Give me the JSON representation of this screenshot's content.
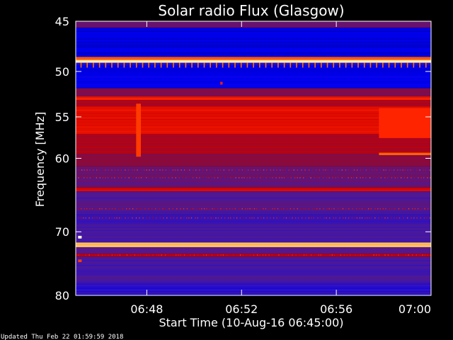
{
  "chart_data": {
    "type": "heatmap",
    "title": "Solar radio Flux (Glasgow)",
    "xlabel": "Start Time (10-Aug-16 06:45:00)",
    "ylabel": "Frequency [MHz]",
    "x_ticks": [
      "06:48",
      "06:52",
      "06:56",
      "07:00"
    ],
    "x_tick_minutes": [
      48,
      52,
      56,
      60
    ],
    "xlim_minutes": [
      45,
      60
    ],
    "y_ticks": [
      "45",
      "50",
      "55",
      "60",
      "70",
      "80"
    ],
    "y_tick_values": [
      45,
      50,
      55,
      60,
      70,
      80
    ],
    "ylim": [
      45,
      80
    ],
    "y_reversed": true,
    "y_scale": "log",
    "grid": false,
    "colormap": [
      "#00008b",
      "#0000ff",
      "#4b1a9a",
      "#8b0a3a",
      "#cc0000",
      "#ff2000",
      "#ff8c00",
      "#ffffe0"
    ],
    "bands": [
      {
        "f0": 45.0,
        "f1": 45.6,
        "level": 0.35
      },
      {
        "f0": 45.6,
        "f1": 48.5,
        "level": 0.1
      },
      {
        "f0": 48.5,
        "f1": 48.8,
        "level": 0.8
      },
      {
        "f0": 48.8,
        "f1": 49.1,
        "level": 0.97
      },
      {
        "f0": 49.1,
        "f1": 49.4,
        "level": 0.2
      },
      {
        "f0": 49.4,
        "f1": 51.8,
        "level": 0.12
      },
      {
        "f0": 51.8,
        "f1": 52.7,
        "level": 0.4
      },
      {
        "f0": 52.7,
        "f1": 53.1,
        "level": 0.7
      },
      {
        "f0": 53.1,
        "f1": 53.8,
        "level": 0.5
      },
      {
        "f0": 53.8,
        "f1": 57.0,
        "level": 0.64
      },
      {
        "f0": 57.0,
        "f1": 59.5,
        "level": 0.5
      },
      {
        "f0": 59.5,
        "f1": 61.0,
        "level": 0.42
      },
      {
        "f0": 61.0,
        "f1": 63.8,
        "level": 0.34
      },
      {
        "f0": 63.8,
        "f1": 64.3,
        "level": 0.6
      },
      {
        "f0": 64.3,
        "f1": 67.5,
        "level": 0.3
      },
      {
        "f0": 67.5,
        "f1": 69.0,
        "level": 0.24
      },
      {
        "f0": 69.0,
        "f1": 71.6,
        "level": 0.28
      },
      {
        "f0": 71.6,
        "f1": 72.3,
        "level": 0.93
      },
      {
        "f0": 72.3,
        "f1": 73.3,
        "level": 0.3
      },
      {
        "f0": 73.3,
        "f1": 73.8,
        "level": 0.5
      },
      {
        "f0": 73.8,
        "f1": 78.0,
        "level": 0.28
      },
      {
        "f0": 78.0,
        "f1": 80.0,
        "level": 0.22
      }
    ],
    "features": [
      {
        "t0": 47.55,
        "t1": 47.75,
        "f0": 53.5,
        "f1": 59.8,
        "level": 0.75
      },
      {
        "t0": 57.8,
        "t1": 60.0,
        "f0": 54.0,
        "f1": 57.5,
        "level": 0.72
      },
      {
        "t0": 57.8,
        "t1": 60.0,
        "f0": 59.3,
        "f1": 59.6,
        "level": 0.8
      },
      {
        "t0": 51.1,
        "t1": 51.2,
        "f0": 51.1,
        "f1": 51.4,
        "level": 0.7
      },
      {
        "t0": 45.1,
        "t1": 45.25,
        "f0": 70.6,
        "f1": 71.0,
        "level": 1.0
      },
      {
        "t0": 45.1,
        "t1": 45.25,
        "f0": 74.2,
        "f1": 74.6,
        "level": 0.75
      }
    ]
  },
  "footer": {
    "updated": "Updated Thu Feb 22 01:59:59 2018"
  }
}
